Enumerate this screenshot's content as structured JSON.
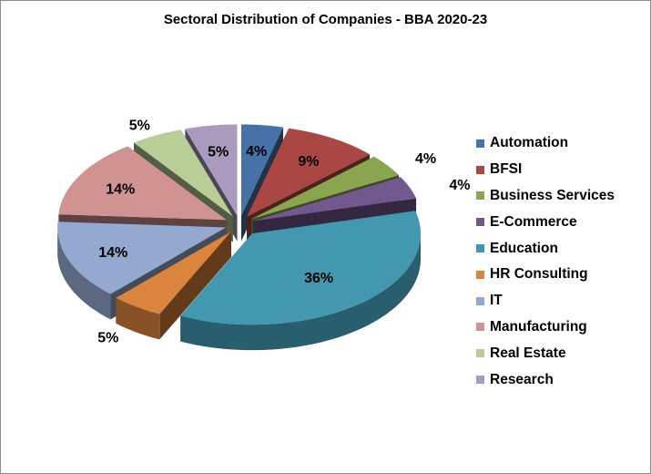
{
  "chart_data": {
    "type": "pie",
    "style": "3d-exploded",
    "title": "Sectoral Distribution of Companies - BBA 2020-23",
    "legend_position": "right",
    "slices": [
      {
        "label": "Automation",
        "value": 4,
        "data_label": "4%",
        "color": "#4572A7"
      },
      {
        "label": "BFSI",
        "value": 9,
        "data_label": "9%",
        "color": "#AA4643"
      },
      {
        "label": "Business Services",
        "value": 4,
        "data_label": "4%",
        "color": "#89A54E"
      },
      {
        "label": "E-Commerce",
        "value": 4,
        "data_label": "4%",
        "color": "#71588F"
      },
      {
        "label": "Education",
        "value": 36,
        "data_label": "36%",
        "color": "#4198AF"
      },
      {
        "label": "HR Consulting",
        "value": 5,
        "data_label": "5%",
        "color": "#DB843D"
      },
      {
        "label": "IT",
        "value": 14,
        "data_label": "14%",
        "color": "#93A9CF"
      },
      {
        "label": "Manufacturing",
        "value": 14,
        "data_label": "14%",
        "color": "#D19392"
      },
      {
        "label": "Real Estate",
        "value": 5,
        "data_label": "5%",
        "color": "#B9CD96"
      },
      {
        "label": "Research",
        "value": 5,
        "data_label": "5%",
        "color": "#A99BBD"
      }
    ]
  }
}
